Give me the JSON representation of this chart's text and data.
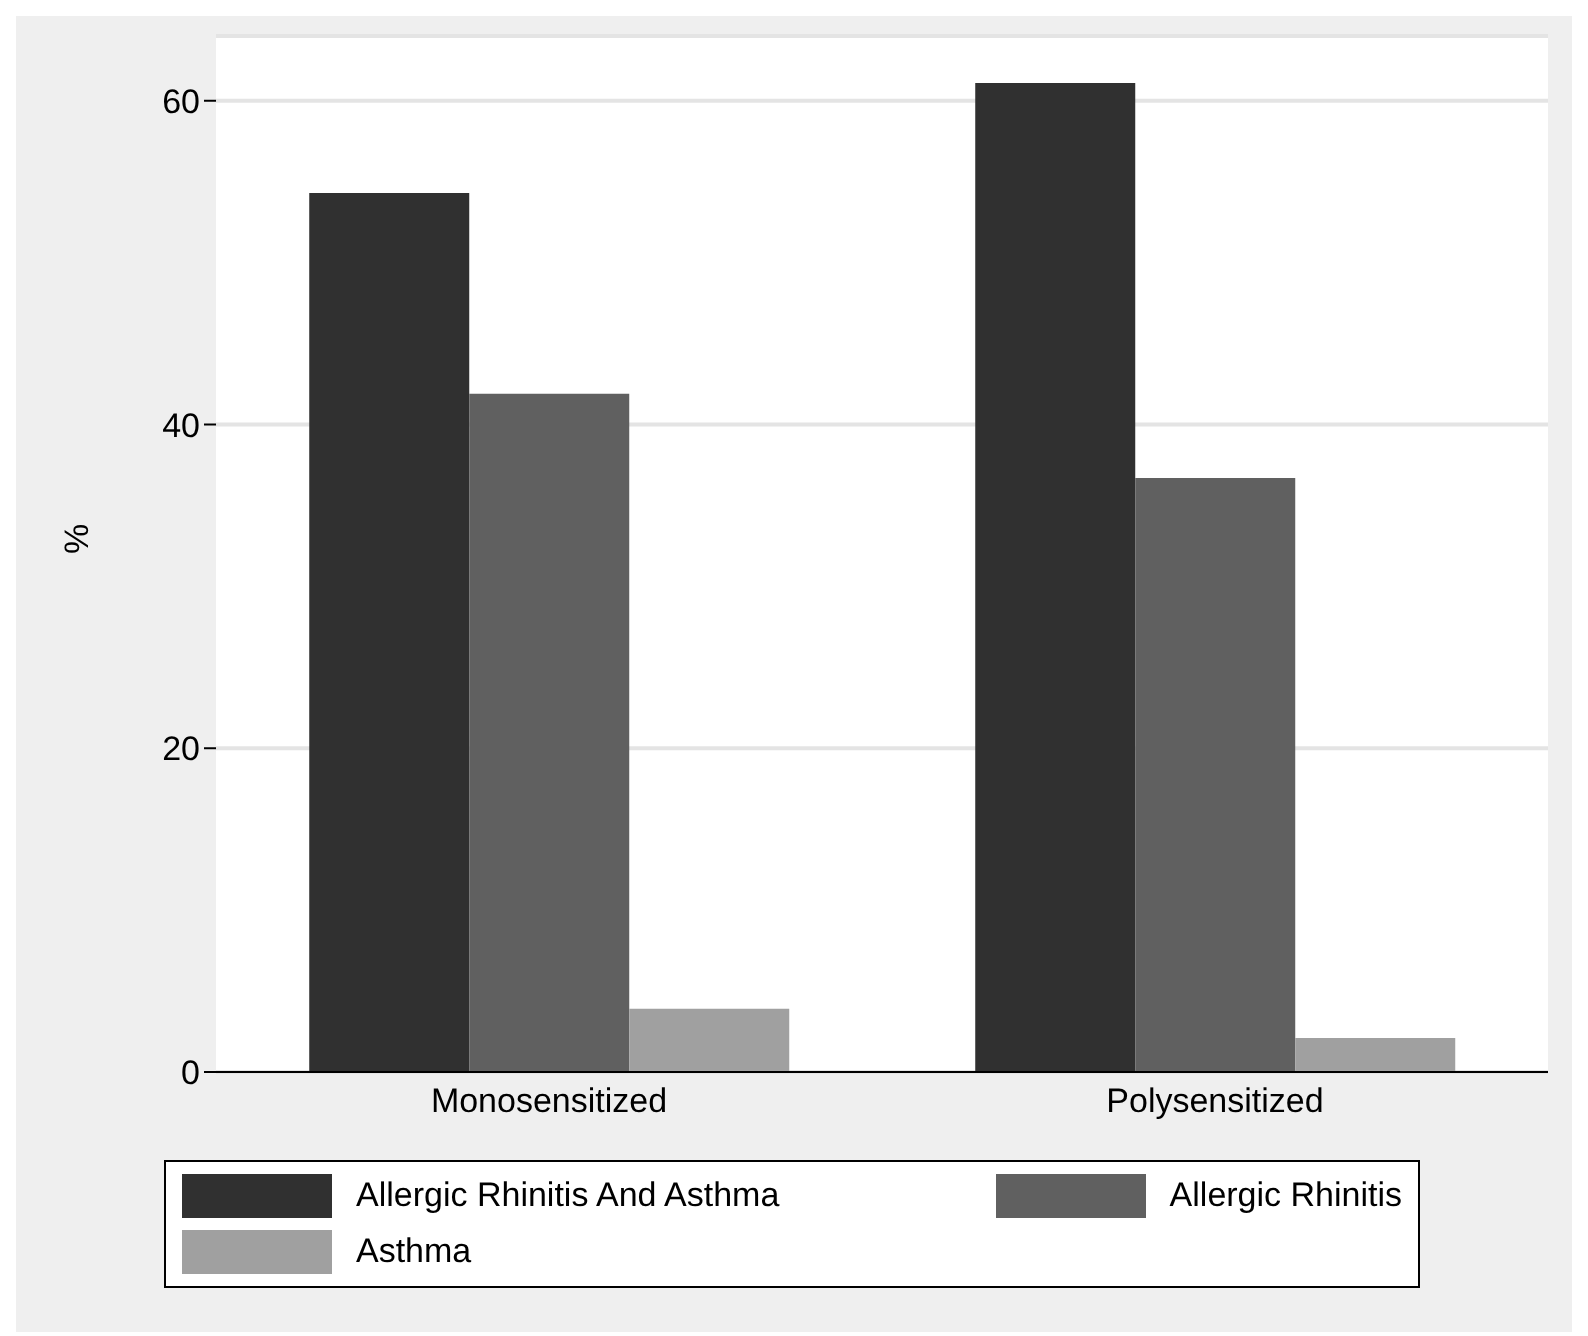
{
  "chart_data": {
    "type": "bar",
    "ylabel": "%",
    "categories": [
      "Monosensitized",
      "Polysensitized"
    ],
    "series": [
      {
        "name": "Allergic Rhinitis And Asthma",
        "color": "#303030",
        "values": [
          54.3,
          61.1
        ]
      },
      {
        "name": "Allergic Rhinitis",
        "color": "#606060",
        "values": [
          41.9,
          36.7
        ]
      },
      {
        "name": "Asthma",
        "color": "#a0a0a0",
        "values": [
          3.9,
          2.1
        ]
      }
    ],
    "ylim": [
      0,
      64
    ],
    "yticks": [
      0,
      20,
      40,
      60
    ],
    "grid": "y",
    "legend": "bottom"
  }
}
